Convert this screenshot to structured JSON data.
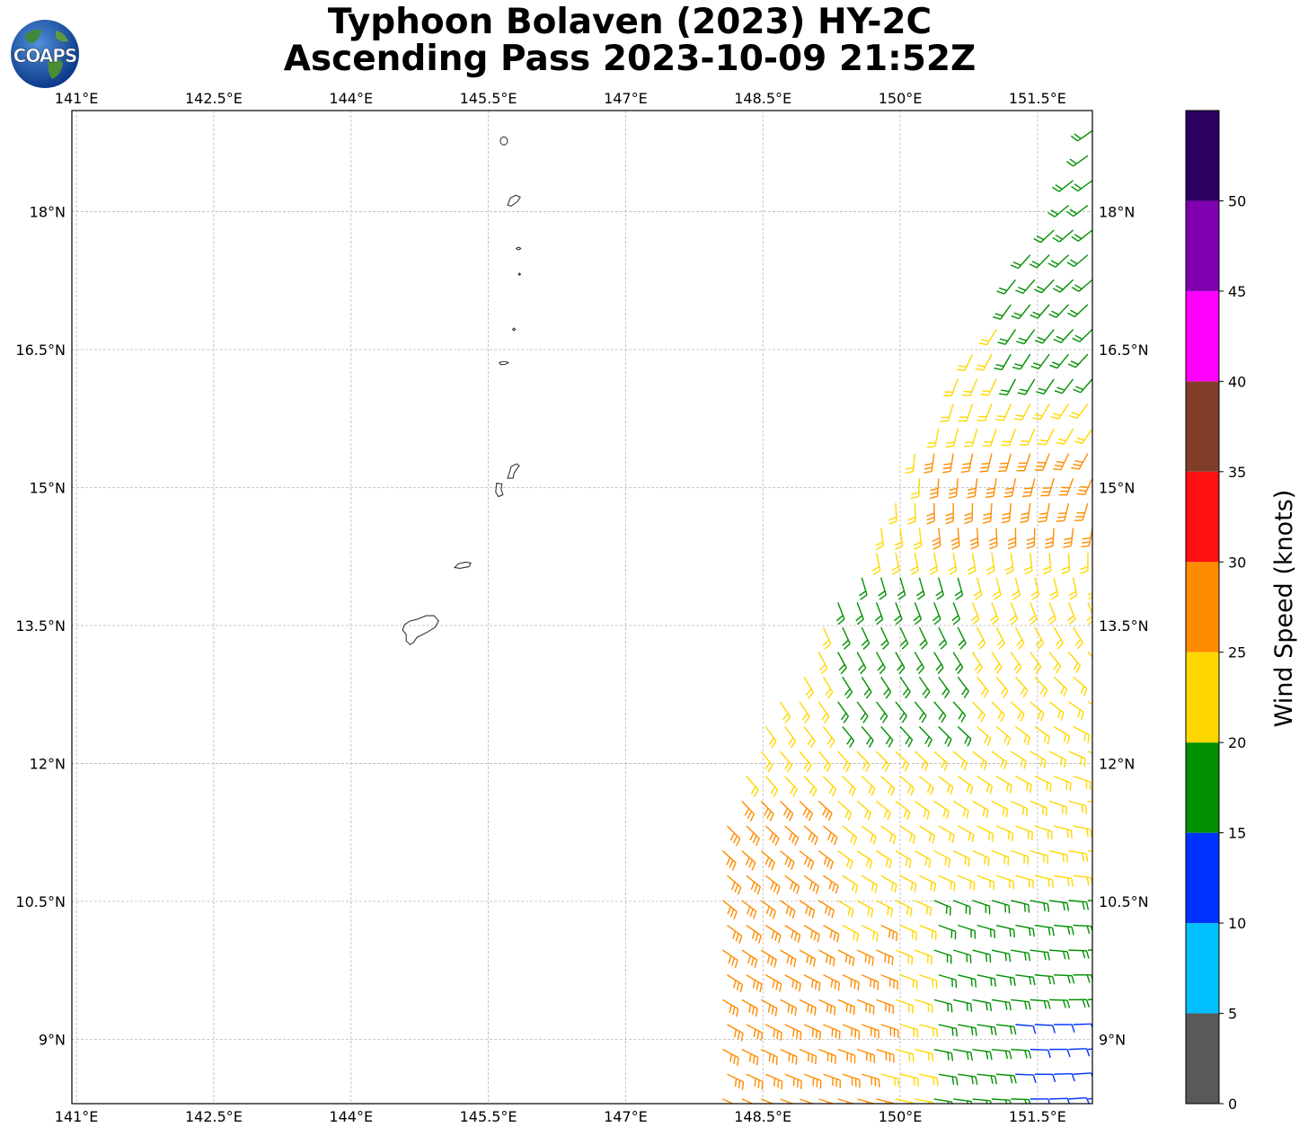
{
  "title": {
    "line1": "Typhoon Bolaven (2023) HY-2C",
    "line2": "Ascending Pass 2023-10-09 21:52Z"
  },
  "logo": {
    "text": "COAPS",
    "icon": "globe-logo-icon"
  },
  "map": {
    "lon_range": [
      140.95,
      152.1
    ],
    "lat_range": [
      8.3,
      19.1
    ],
    "lon_ticks": [
      {
        "value": 141.0,
        "label": "141°E"
      },
      {
        "value": 142.5,
        "label": "142.5°E"
      },
      {
        "value": 144.0,
        "label": "144°E"
      },
      {
        "value": 145.5,
        "label": "145.5°E"
      },
      {
        "value": 147.0,
        "label": "147°E"
      },
      {
        "value": 148.5,
        "label": "148.5°E"
      },
      {
        "value": 150.0,
        "label": "150°E"
      },
      {
        "value": 151.5,
        "label": "151.5°E"
      }
    ],
    "lat_ticks": [
      {
        "value": 9.0,
        "label": "9°N"
      },
      {
        "value": 10.5,
        "label": "10.5°N"
      },
      {
        "value": 12.0,
        "label": "12°N"
      },
      {
        "value": 13.5,
        "label": "13.5°N"
      },
      {
        "value": 15.0,
        "label": "15°N"
      },
      {
        "value": 16.5,
        "label": "16.5°N"
      },
      {
        "value": 18.0,
        "label": "18°N"
      }
    ],
    "gridlines": true,
    "islands": [
      {
        "name": "Guam",
        "lon": 144.78,
        "lat": 13.45
      },
      {
        "name": "Rota",
        "lon": 145.22,
        "lat": 14.15
      },
      {
        "name": "Tinian",
        "lon": 145.62,
        "lat": 14.98
      },
      {
        "name": "Saipan",
        "lon": 145.75,
        "lat": 15.18
      },
      {
        "name": "Anatahan",
        "lon": 145.67,
        "lat": 16.35
      },
      {
        "name": "Sarigan",
        "lon": 145.78,
        "lat": 16.72
      },
      {
        "name": "Guguan",
        "lon": 145.84,
        "lat": 17.32
      },
      {
        "name": "Alamagan",
        "lon": 145.83,
        "lat": 17.6
      },
      {
        "name": "Pagan",
        "lon": 145.77,
        "lat": 18.12
      },
      {
        "name": "Agrihan",
        "lon": 145.67,
        "lat": 18.77
      }
    ]
  },
  "colorbar": {
    "label": "Wind Speed (knots)",
    "bins": [
      {
        "min": 0,
        "max": 5,
        "color": "#595959"
      },
      {
        "min": 5,
        "max": 10,
        "color": "#00bfff"
      },
      {
        "min": 10,
        "max": 15,
        "color": "#0033ff"
      },
      {
        "min": 15,
        "max": 20,
        "color": "#009000"
      },
      {
        "min": 20,
        "max": 25,
        "color": "#ffd700"
      },
      {
        "min": 25,
        "max": 30,
        "color": "#ff8c00"
      },
      {
        "min": 30,
        "max": 35,
        "color": "#ff1010"
      },
      {
        "min": 35,
        "max": 40,
        "color": "#803e28"
      },
      {
        "min": 40,
        "max": 45,
        "color": "#ff00ff"
      },
      {
        "min": 45,
        "max": 50,
        "color": "#8000b0"
      },
      {
        "min": 50,
        "max": 55,
        "color": "#2b0060"
      }
    ],
    "ticks": [
      "0",
      "5",
      "10",
      "15",
      "20",
      "25",
      "30",
      "35",
      "40",
      "45",
      "50"
    ]
  }
}
